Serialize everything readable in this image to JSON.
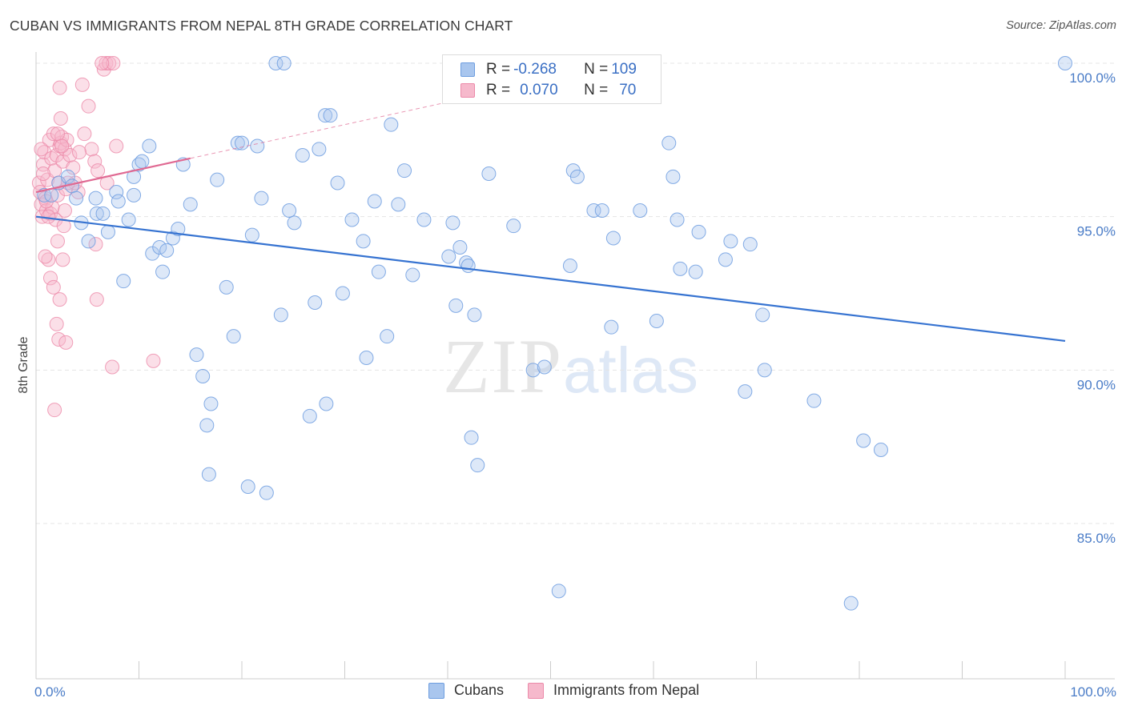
{
  "header": {
    "title": "CUBAN VS IMMIGRANTS FROM NEPAL 8TH GRADE CORRELATION CHART",
    "source": "Source: ZipAtlas.com"
  },
  "watermark": {
    "zip": "ZIP",
    "atlas": "atlas"
  },
  "legend_top": {
    "row1": {
      "r_label": "R = ",
      "r_value": "-0.268",
      "n_label": "N = ",
      "n_value": "109"
    },
    "row2": {
      "r_label": "R = ",
      "r_value": "0.070",
      "n_label": "N = ",
      "n_value": "70"
    }
  },
  "legend_bottom": {
    "cubans": "Cubans",
    "nepal": "Immigrants from Nepal"
  },
  "colors": {
    "blue_fill": "#a9c6ee",
    "blue_stroke": "#6e9ee0",
    "blue_line": "#3673d1",
    "pink_fill": "#f6b9cc",
    "pink_stroke": "#ec8aa9",
    "pink_line": "#e06a93",
    "grid": "#e4e4e4"
  },
  "chart_data": {
    "type": "scatter",
    "title": "CUBAN VS IMMIGRANTS FROM NEPAL 8TH GRADE CORRELATION CHART",
    "xlabel": "",
    "ylabel": "8th Grade",
    "xlim": [
      0,
      100
    ],
    "ylim": [
      80.5,
      100.8
    ],
    "x_tick_labels": [
      "0.0%",
      "100.0%"
    ],
    "y_ticks": [
      85,
      90,
      95,
      100
    ],
    "y_tick_labels": [
      "85.0%",
      "90.0%",
      "95.0%",
      "100.0%"
    ],
    "grid": true,
    "legend_position": "top-center",
    "series": [
      {
        "name": "Cubans",
        "color": "#a9c6ee",
        "R": -0.268,
        "N": 109,
        "trend": {
          "x": [
            0,
            100
          ],
          "y": [
            95.0,
            90.95
          ]
        },
        "points": [
          [
            0.8,
            95.7
          ],
          [
            1.5,
            95.7
          ],
          [
            2.2,
            96.1
          ],
          [
            3.1,
            96.3
          ],
          [
            3.5,
            96.0
          ],
          [
            3.9,
            95.6
          ],
          [
            4.4,
            94.8
          ],
          [
            5.1,
            94.2
          ],
          [
            5.8,
            95.6
          ],
          [
            5.9,
            95.1
          ],
          [
            6.5,
            95.1
          ],
          [
            7.0,
            94.5
          ],
          [
            7.8,
            95.8
          ],
          [
            8.5,
            92.9
          ],
          [
            9.0,
            94.9
          ],
          [
            9.5,
            95.7
          ],
          [
            9.5,
            96.3
          ],
          [
            10.0,
            96.7
          ],
          [
            10.3,
            96.8
          ],
          [
            11.0,
            97.3
          ],
          [
            11.3,
            93.8
          ],
          [
            12.0,
            94.0
          ],
          [
            12.3,
            93.2
          ],
          [
            12.7,
            93.9
          ],
          [
            13.3,
            94.3
          ],
          [
            13.8,
            94.6
          ],
          [
            14.3,
            96.7
          ],
          [
            15.0,
            95.4
          ],
          [
            15.6,
            90.5
          ],
          [
            16.2,
            89.8
          ],
          [
            16.6,
            88.2
          ],
          [
            16.8,
            86.6
          ],
          [
            17.0,
            88.9
          ],
          [
            17.6,
            96.2
          ],
          [
            18.5,
            92.7
          ],
          [
            19.2,
            91.1
          ],
          [
            19.6,
            97.4
          ],
          [
            20.0,
            97.4
          ],
          [
            20.6,
            86.2
          ],
          [
            21.0,
            94.4
          ],
          [
            21.5,
            97.3
          ],
          [
            21.9,
            95.6
          ],
          [
            22.4,
            86.0
          ],
          [
            23.3,
            100.0
          ],
          [
            24.1,
            100.0
          ],
          [
            23.8,
            91.8
          ],
          [
            24.6,
            95.2
          ],
          [
            25.1,
            94.8
          ],
          [
            25.9,
            97.0
          ],
          [
            26.6,
            88.5
          ],
          [
            27.1,
            92.2
          ],
          [
            27.5,
            97.2
          ],
          [
            28.1,
            98.3
          ],
          [
            28.6,
            98.3
          ],
          [
            28.2,
            88.9
          ],
          [
            29.3,
            96.1
          ],
          [
            29.8,
            92.5
          ],
          [
            30.7,
            94.9
          ],
          [
            31.8,
            94.2
          ],
          [
            32.1,
            90.4
          ],
          [
            32.9,
            95.5
          ],
          [
            33.3,
            93.2
          ],
          [
            34.1,
            91.1
          ],
          [
            34.5,
            98.0
          ],
          [
            35.2,
            95.4
          ],
          [
            35.8,
            96.5
          ],
          [
            36.6,
            93.1
          ],
          [
            37.7,
            94.9
          ],
          [
            40.1,
            93.7
          ],
          [
            40.5,
            94.8
          ],
          [
            40.8,
            92.1
          ],
          [
            41.2,
            94.0
          ],
          [
            41.8,
            93.5
          ],
          [
            42.0,
            93.4
          ],
          [
            42.3,
            87.8
          ],
          [
            42.6,
            91.8
          ],
          [
            42.9,
            86.9
          ],
          [
            44.0,
            96.4
          ],
          [
            48.3,
            90.0
          ],
          [
            49.4,
            90.1
          ],
          [
            50.8,
            82.8
          ],
          [
            51.9,
            93.4
          ],
          [
            52.2,
            96.5
          ],
          [
            52.6,
            96.3
          ],
          [
            54.2,
            95.2
          ],
          [
            55.0,
            95.2
          ],
          [
            56.1,
            94.3
          ],
          [
            55.9,
            91.4
          ],
          [
            58.7,
            95.2
          ],
          [
            60.3,
            91.6
          ],
          [
            61.5,
            97.4
          ],
          [
            61.9,
            96.3
          ],
          [
            62.3,
            94.9
          ],
          [
            62.6,
            93.3
          ],
          [
            64.4,
            94.5
          ],
          [
            64.1,
            93.2
          ],
          [
            67.0,
            93.6
          ],
          [
            67.5,
            94.2
          ],
          [
            68.9,
            89.3
          ],
          [
            69.4,
            94.1
          ],
          [
            70.6,
            91.8
          ],
          [
            70.8,
            90.0
          ],
          [
            75.6,
            89.0
          ],
          [
            80.4,
            87.7
          ],
          [
            82.1,
            87.4
          ],
          [
            79.2,
            82.4
          ],
          [
            100.0,
            100.0
          ],
          [
            46.4,
            94.7
          ],
          [
            8.0,
            95.5
          ]
        ]
      },
      {
        "name": "Immigrants from Nepal",
        "color": "#f6b9cc",
        "R": 0.07,
        "N": 70,
        "trend": {
          "x": [
            0,
            15
          ],
          "y": [
            95.8,
            96.9
          ]
        },
        "points": [
          [
            0.3,
            96.1
          ],
          [
            0.4,
            95.8
          ],
          [
            0.5,
            95.4
          ],
          [
            0.6,
            95.0
          ],
          [
            0.7,
            96.7
          ],
          [
            0.8,
            97.1
          ],
          [
            0.9,
            95.6
          ],
          [
            1.0,
            95.2
          ],
          [
            1.1,
            96.2
          ],
          [
            1.2,
            93.6
          ],
          [
            1.3,
            97.5
          ],
          [
            1.4,
            95.1
          ],
          [
            1.5,
            96.9
          ],
          [
            1.6,
            95.3
          ],
          [
            1.7,
            97.7
          ],
          [
            1.8,
            96.5
          ],
          [
            1.9,
            94.9
          ],
          [
            2.0,
            97.0
          ],
          [
            2.1,
            95.7
          ],
          [
            2.2,
            96.1
          ],
          [
            2.3,
            97.3
          ],
          [
            2.4,
            97.4
          ],
          [
            2.5,
            97.6
          ],
          [
            2.6,
            96.8
          ],
          [
            2.7,
            94.7
          ],
          [
            2.8,
            97.2
          ],
          [
            2.9,
            95.9
          ],
          [
            3.0,
            97.5
          ],
          [
            3.3,
            97.0
          ],
          [
            3.6,
            96.6
          ],
          [
            0.9,
            93.7
          ],
          [
            1.4,
            93.0
          ],
          [
            1.7,
            92.7
          ],
          [
            2.0,
            91.5
          ],
          [
            2.3,
            92.3
          ],
          [
            2.2,
            91.0
          ],
          [
            2.9,
            90.9
          ],
          [
            1.8,
            88.7
          ],
          [
            2.1,
            94.2
          ],
          [
            2.6,
            93.6
          ],
          [
            2.3,
            99.2
          ],
          [
            2.4,
            98.2
          ],
          [
            2.1,
            97.7
          ],
          [
            2.5,
            97.3
          ],
          [
            4.5,
            99.3
          ],
          [
            5.1,
            98.6
          ],
          [
            5.4,
            97.2
          ],
          [
            4.7,
            97.7
          ],
          [
            5.7,
            96.8
          ],
          [
            6.0,
            96.5
          ],
          [
            6.6,
            99.8
          ],
          [
            6.8,
            100.0
          ],
          [
            7.1,
            100.0
          ],
          [
            7.5,
            100.0
          ],
          [
            6.4,
            100.0
          ],
          [
            7.8,
            97.3
          ],
          [
            6.9,
            96.1
          ],
          [
            5.8,
            94.1
          ],
          [
            5.9,
            92.3
          ],
          [
            7.4,
            90.1
          ],
          [
            11.4,
            90.3
          ],
          [
            4.1,
            95.8
          ],
          [
            3.8,
            96.1
          ],
          [
            0.5,
            97.2
          ],
          [
            1.2,
            95.0
          ],
          [
            2.8,
            95.2
          ],
          [
            3.1,
            96.1
          ],
          [
            0.7,
            96.4
          ],
          [
            4.2,
            97.1
          ],
          [
            1.0,
            95.5
          ]
        ]
      }
    ]
  }
}
